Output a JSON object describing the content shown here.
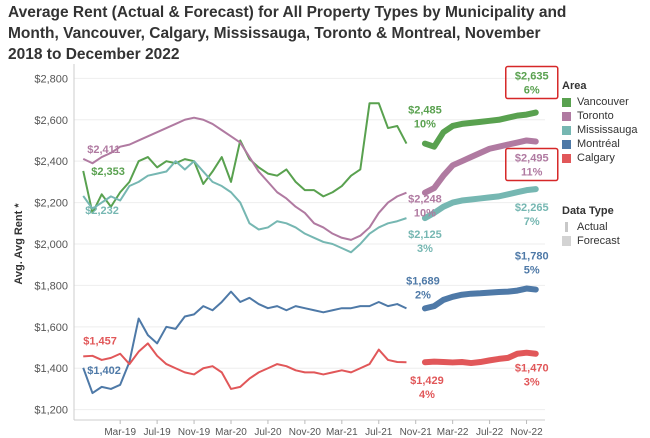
{
  "chart_data": {
    "type": "line",
    "title": "Average Rent (Actual & Forecast) for All Property Types by Municipality and Month, Vancouver, Calgary, Mississauga, Toronto & Montreal, November 2018 to December 2022",
    "ylabel": "Avg. Avg Rent *",
    "xlabel": "",
    "ylim": [
      1150,
      2850
    ],
    "yticks": [
      1200,
      1400,
      1600,
      1800,
      2000,
      2200,
      2400,
      2600,
      2800
    ],
    "ytick_labels": [
      "$1,200",
      "$1,400",
      "$1,600",
      "$1,800",
      "$2,000",
      "$2,200",
      "$2,400",
      "$2,600",
      "$2,800"
    ],
    "xticks": [
      {
        "x": 4,
        "label": "Mar-19"
      },
      {
        "x": 8,
        "label": "Jul-19"
      },
      {
        "x": 12,
        "label": "Nov-19"
      },
      {
        "x": 16,
        "label": "Mar-20"
      },
      {
        "x": 20,
        "label": "Jul-20"
      },
      {
        "x": 24,
        "label": "Nov-20"
      },
      {
        "x": 28,
        "label": "Mar-21"
      },
      {
        "x": 32,
        "label": "Jul-21"
      },
      {
        "x": 36,
        "label": "Nov-21"
      },
      {
        "x": 40,
        "label": "Mar-22"
      },
      {
        "x": 44,
        "label": "Jul-22"
      },
      {
        "x": 48,
        "label": "Nov-22"
      }
    ],
    "legend_title": "Area",
    "legend": [
      {
        "name": "Vancouver",
        "color": "#59A14F"
      },
      {
        "name": "Toronto",
        "color": "#B07AA1"
      },
      {
        "name": "Mississauga",
        "color": "#76B7B2"
      },
      {
        "name": "Montréal",
        "color": "#4E79A7"
      },
      {
        "name": "Calgary",
        "color": "#E15759"
      }
    ],
    "data_type_title": "Data Type",
    "data_types": [
      "Actual",
      "Forecast"
    ],
    "series": [
      {
        "name": "Vancouver",
        "color": "#59A14F",
        "actual_x0": 0,
        "actual": [
          2353,
          2150,
          2240,
          2180,
          2250,
          2300,
          2400,
          2420,
          2370,
          2400,
          2390,
          2410,
          2400,
          2290,
          2350,
          2420,
          2300,
          2500,
          2410,
          2370,
          2340,
          2330,
          2360,
          2300,
          2260,
          2260,
          2230,
          2250,
          2280,
          2330,
          2360,
          2680,
          2680,
          2560,
          2570,
          2485
        ],
        "forecast_x0": 37,
        "forecast": [
          2485,
          2470,
          2540,
          2570,
          2580,
          2585,
          2590,
          2595,
          2600,
          2610,
          2620,
          2625,
          2635
        ]
      },
      {
        "name": "Toronto",
        "color": "#B07AA1",
        "actual_x0": 0,
        "actual": [
          2411,
          2390,
          2420,
          2440,
          2470,
          2480,
          2500,
          2520,
          2540,
          2560,
          2580,
          2600,
          2610,
          2600,
          2580,
          2550,
          2520,
          2490,
          2420,
          2350,
          2300,
          2250,
          2220,
          2180,
          2150,
          2100,
          2080,
          2050,
          2030,
          2020,
          2040,
          2080,
          2150,
          2200,
          2230,
          2248
        ],
        "forecast_x0": 37,
        "forecast": [
          2248,
          2270,
          2330,
          2380,
          2400,
          2420,
          2440,
          2460,
          2470,
          2480,
          2490,
          2500,
          2495
        ]
      },
      {
        "name": "Mississauga",
        "color": "#76B7B2",
        "actual_x0": 0,
        "actual": [
          2232,
          2170,
          2200,
          2230,
          2210,
          2280,
          2300,
          2330,
          2340,
          2350,
          2400,
          2360,
          2400,
          2350,
          2300,
          2280,
          2250,
          2200,
          2100,
          2070,
          2080,
          2110,
          2100,
          2080,
          2050,
          2030,
          2010,
          2000,
          1980,
          1960,
          2000,
          2050,
          2080,
          2100,
          2110,
          2125
        ],
        "forecast_x0": 37,
        "forecast": [
          2125,
          2150,
          2180,
          2200,
          2210,
          2215,
          2220,
          2225,
          2230,
          2240,
          2250,
          2260,
          2265
        ]
      },
      {
        "name": "Montréal",
        "color": "#4E79A7",
        "actual_x0": 0,
        "actual": [
          1402,
          1280,
          1310,
          1300,
          1320,
          1430,
          1640,
          1560,
          1520,
          1600,
          1590,
          1650,
          1660,
          1700,
          1680,
          1720,
          1770,
          1720,
          1740,
          1710,
          1690,
          1700,
          1680,
          1700,
          1690,
          1680,
          1670,
          1680,
          1690,
          1690,
          1700,
          1700,
          1720,
          1700,
          1710,
          1689
        ],
        "forecast_x0": 37,
        "forecast": [
          1689,
          1700,
          1730,
          1745,
          1755,
          1760,
          1762,
          1765,
          1768,
          1770,
          1775,
          1785,
          1780
        ]
      },
      {
        "name": "Calgary",
        "color": "#E15759",
        "actual_x0": 0,
        "actual": [
          1457,
          1460,
          1440,
          1450,
          1470,
          1420,
          1480,
          1520,
          1460,
          1420,
          1400,
          1380,
          1370,
          1400,
          1410,
          1380,
          1300,
          1310,
          1350,
          1380,
          1400,
          1420,
          1410,
          1390,
          1380,
          1380,
          1370,
          1380,
          1390,
          1380,
          1400,
          1420,
          1490,
          1440,
          1430,
          1429
        ],
        "forecast_x0": 37,
        "forecast": [
          1429,
          1432,
          1430,
          1428,
          1430,
          1425,
          1430,
          1438,
          1445,
          1450,
          1470,
          1475,
          1470
        ]
      }
    ],
    "annotations": [
      {
        "series": "Vancouver",
        "x": 0,
        "value": "$2,353",
        "pct": ""
      },
      {
        "series": "Toronto",
        "x": 0,
        "value": "$2,411",
        "pct": ""
      },
      {
        "series": "Mississauga",
        "x": 0,
        "value": "$2,232",
        "pct": ""
      },
      {
        "series": "Montréal",
        "x": 0,
        "value": "$1,402",
        "pct": ""
      },
      {
        "series": "Calgary",
        "x": 0,
        "value": "$1,457",
        "pct": ""
      },
      {
        "series": "Vancouver",
        "x": 37,
        "value": "$2,485",
        "pct": "10%"
      },
      {
        "series": "Toronto",
        "x": 37,
        "value": "$2,248",
        "pct": "10%"
      },
      {
        "series": "Mississauga",
        "x": 37,
        "value": "$2,125",
        "pct": "3%"
      },
      {
        "series": "Montréal",
        "x": 37,
        "value": "$1,689",
        "pct": "2%"
      },
      {
        "series": "Calgary",
        "x": 37,
        "value": "$1,429",
        "pct": "4%"
      },
      {
        "series": "Vancouver",
        "x": 49,
        "value": "$2,635",
        "pct": "6%",
        "highlight": true
      },
      {
        "series": "Toronto",
        "x": 49,
        "value": "$2,495",
        "pct": "11%",
        "highlight": true
      },
      {
        "series": "Mississauga",
        "x": 49,
        "value": "$2,265",
        "pct": "7%"
      },
      {
        "series": "Montréal",
        "x": 49,
        "value": "$1,780",
        "pct": "5%"
      },
      {
        "series": "Calgary",
        "x": 49,
        "value": "$1,470",
        "pct": "3%"
      }
    ]
  }
}
